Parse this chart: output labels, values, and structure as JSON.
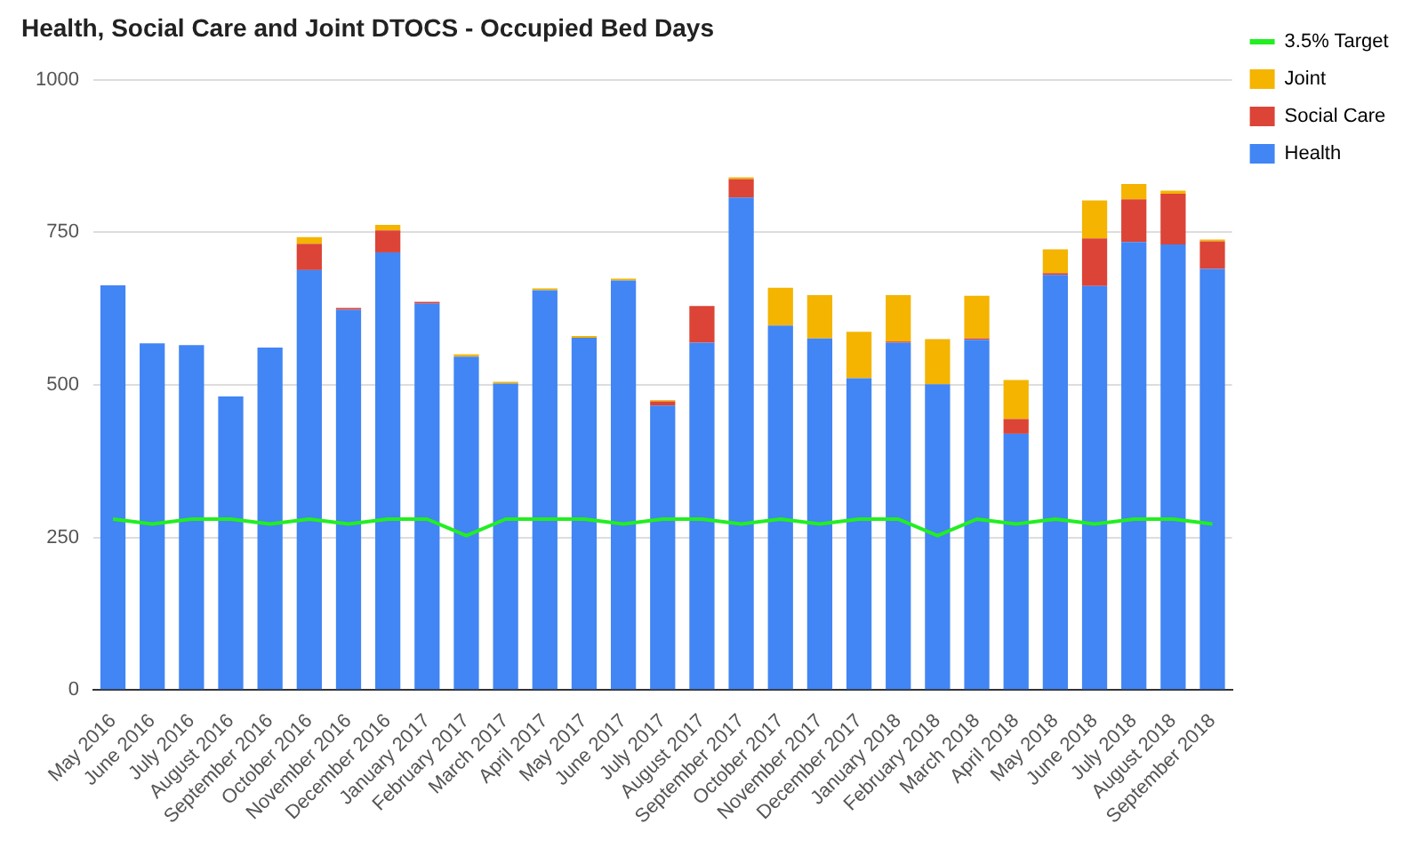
{
  "chart_data": {
    "type": "bar",
    "title": "Health, Social Care and Joint DTOCS - Occupied Bed Days",
    "categories": [
      "May 2016",
      "June 2016",
      "July 2016",
      "August 2016",
      "September 2016",
      "October 2016",
      "November 2016",
      "December 2016",
      "January 2017",
      "February 2017",
      "March 2017",
      "April 2017",
      "May 2017",
      "June 2017",
      "July 2017",
      "August 2017",
      "September 2017",
      "October 2017",
      "November 2017",
      "December 2017",
      "January 2018",
      "February 2018",
      "March 2018",
      "April 2018",
      "May 2018",
      "June 2018",
      "July 2018",
      "August 2018",
      "September 2018"
    ],
    "stacked": true,
    "series": [
      {
        "name": "Health",
        "color": "#4285f4",
        "values": [
          663,
          568,
          565,
          481,
          561,
          688,
          623,
          717,
          633,
          546,
          502,
          655,
          577,
          671,
          466,
          569,
          807,
          597,
          576,
          511,
          569,
          501,
          574,
          420,
          680,
          662,
          734,
          730,
          690
        ]
      },
      {
        "name": "Social Care",
        "color": "#db4437",
        "values": [
          0,
          0,
          0,
          0,
          0,
          43,
          3,
          36,
          3,
          0,
          0,
          0,
          0,
          0,
          7,
          60,
          30,
          0,
          0,
          0,
          2,
          0,
          2,
          24,
          3,
          78,
          70,
          83,
          45
        ]
      },
      {
        "name": "Joint",
        "color": "#f4b400",
        "values": [
          0,
          0,
          0,
          0,
          0,
          11,
          0,
          9,
          0,
          4,
          3,
          3,
          3,
          3,
          2,
          0,
          3,
          62,
          71,
          76,
          76,
          74,
          70,
          64,
          39,
          62,
          25,
          5,
          3
        ]
      },
      {
        "name": "3.5% Target",
        "type": "line",
        "color": "#22ee22",
        "values": [
          280,
          272,
          280,
          280,
          272,
          280,
          272,
          280,
          280,
          253,
          280,
          280,
          280,
          272,
          280,
          280,
          272,
          280,
          272,
          280,
          280,
          253,
          280,
          272,
          280,
          272,
          280,
          280,
          272
        ]
      }
    ],
    "ylim": [
      0,
      1000
    ],
    "yticks": [
      0,
      250,
      500,
      750,
      1000
    ],
    "grid": "y",
    "legend": "right",
    "marker": "none"
  }
}
